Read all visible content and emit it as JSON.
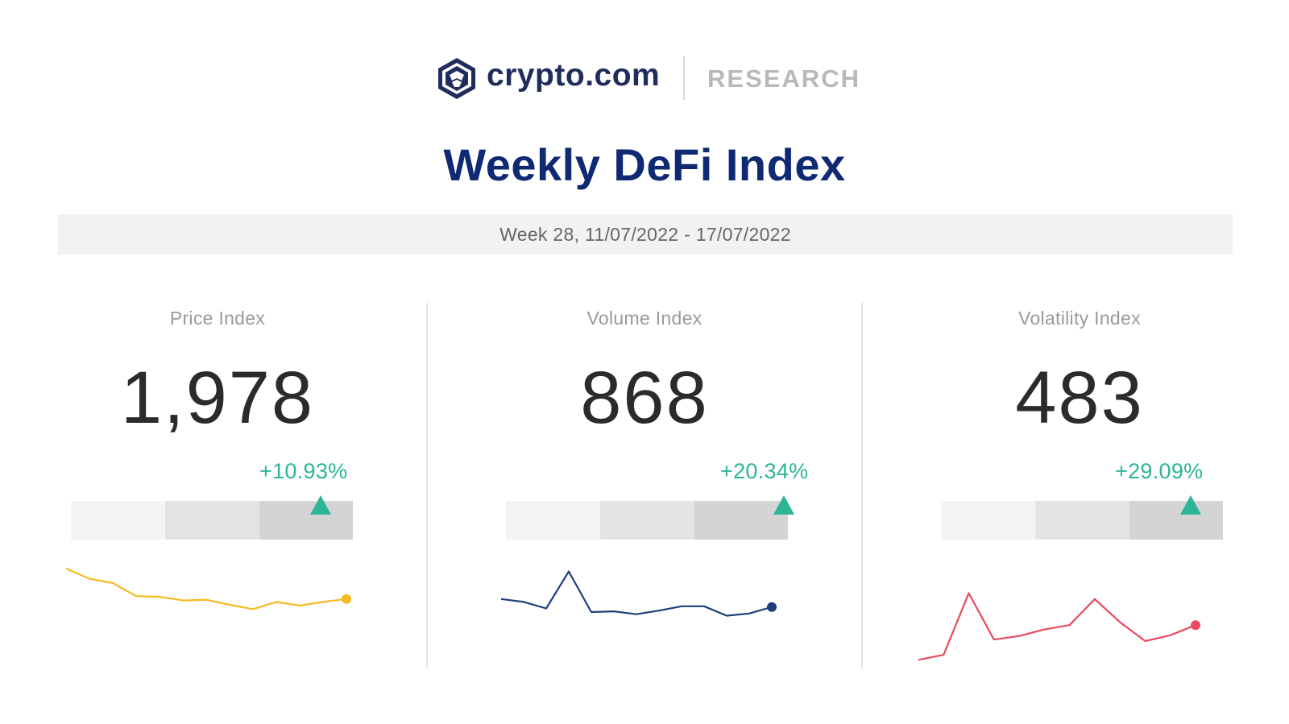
{
  "header": {
    "brand": "crypto.com",
    "section": "RESEARCH",
    "logo_icon": "crypto-com-lion-logo"
  },
  "page_title": "Weekly DeFi Index",
  "week_range": "Week 28, 11/07/2022 - 17/07/2022",
  "colors": {
    "title": "#0f2a73",
    "positive": "#2db598",
    "price_line": "#f5b921",
    "volume_line": "#1d3f7b",
    "volatility_line": "#ea4a5f"
  },
  "chart_data": [
    {
      "type": "line",
      "label": "Price Index",
      "value": "1,978",
      "change": "+10.93%",
      "direction": "up",
      "range_position": 0.84,
      "color": "#f5b921",
      "series": [
        {
          "values": [
            100,
            93,
            90,
            81,
            80.5,
            78,
            78.5,
            75,
            72,
            77,
            74.5,
            77,
            79
          ]
        }
      ]
    },
    {
      "type": "line",
      "label": "Volume Index",
      "value": "868",
      "change": "+20.34%",
      "direction": "up",
      "range_position": 0.94,
      "color": "#1d3f7b",
      "series": [
        {
          "values": [
            79,
            77,
            72.5,
            98,
            70,
            70.5,
            68.5,
            71,
            74,
            74,
            67.5,
            69,
            73.5
          ]
        }
      ]
    },
    {
      "type": "line",
      "label": "Volatility Index",
      "value": "483",
      "change": "+29.09%",
      "direction": "up",
      "range_position": 0.84,
      "color": "#ea4a5f",
      "series": [
        {
          "values": [
            37,
            40.5,
            83,
            51,
            53.5,
            58,
            61,
            79,
            63,
            50,
            54,
            61
          ]
        }
      ]
    }
  ]
}
